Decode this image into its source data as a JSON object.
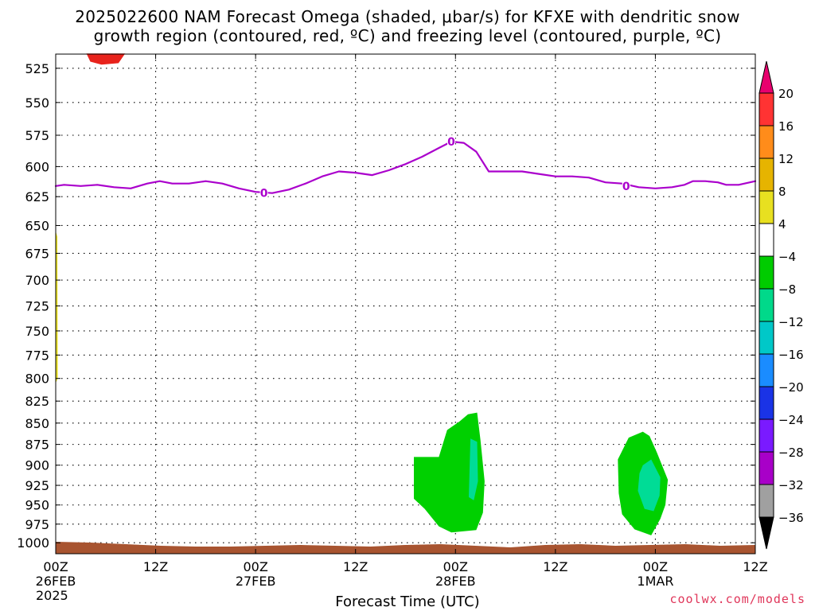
{
  "title": {
    "line1": "2025022600 NAM Forecast Omega (shaded, μbar/s) for KFXE with dendritic snow",
    "line2": "growth region (contoured, red, ºC) and freezing level (contoured, purple, ºC)"
  },
  "chart_data": {
    "type": "heatmap",
    "title": "2025022600 NAM Forecast Omega (shaded, μbar/s) for KFXE with dendritic snow growth region (contoured, red, ºC) and freezing level (contoured, purple, ºC)",
    "xlabel": "Forecast Time (UTC)",
    "ylabel": "",
    "x_ticks": [
      {
        "hour": 0,
        "line1": "00Z",
        "line2": "26FEB",
        "line3": "2025"
      },
      {
        "hour": 12,
        "line1": "12Z",
        "line2": "",
        "line3": ""
      },
      {
        "hour": 24,
        "line1": "00Z",
        "line2": "27FEB",
        "line3": ""
      },
      {
        "hour": 36,
        "line1": "12Z",
        "line2": "",
        "line3": ""
      },
      {
        "hour": 48,
        "line1": "00Z",
        "line2": "28FEB",
        "line3": ""
      },
      {
        "hour": 60,
        "line1": "12Z",
        "line2": "",
        "line3": ""
      },
      {
        "hour": 72,
        "line1": "00Z",
        "line2": "1MAR",
        "line3": ""
      },
      {
        "hour": 84,
        "line1": "12Z",
        "line2": "",
        "line3": ""
      }
    ],
    "xlim": [
      0,
      84
    ],
    "y_ticks": [
      525,
      550,
      575,
      600,
      625,
      650,
      675,
      700,
      725,
      750,
      775,
      800,
      825,
      850,
      875,
      900,
      925,
      950,
      975,
      1000
    ],
    "ylim": [
      515,
      1015
    ],
    "y_scale": "log-pressure",
    "grid": true,
    "colorbar": {
      "labels": [
        "20",
        "16",
        "12",
        "8",
        "4",
        "−4",
        "−8",
        "−12",
        "−16",
        "−20",
        "−24",
        "−28",
        "−32",
        "−36"
      ],
      "colors": [
        "#e8006e",
        "#ff3333",
        "#ff8c1a",
        "#e6b400",
        "#e8e020",
        "#ffffff",
        "#00cc00",
        "#00d98a",
        "#00c8c8",
        "#1a8cff",
        "#1a33e6",
        "#7a1aff",
        "#a800c8",
        "#a0a0a0",
        "#000000"
      ]
    },
    "freezing_level": {
      "label": "0",
      "color": "#aa00cc",
      "points": [
        [
          0,
          616
        ],
        [
          1,
          615
        ],
        [
          3,
          616
        ],
        [
          5,
          615
        ],
        [
          7,
          617
        ],
        [
          9,
          618
        ],
        [
          11,
          614
        ],
        [
          12.5,
          612
        ],
        [
          14,
          614
        ],
        [
          16,
          614
        ],
        [
          18,
          612
        ],
        [
          20,
          614
        ],
        [
          22,
          618
        ],
        [
          24,
          621
        ],
        [
          26,
          622
        ],
        [
          28,
          619
        ],
        [
          30,
          614
        ],
        [
          32,
          608
        ],
        [
          34,
          604
        ],
        [
          36,
          605
        ],
        [
          38,
          607
        ],
        [
          40,
          603
        ],
        [
          42,
          598
        ],
        [
          44,
          592
        ],
        [
          46,
          585
        ],
        [
          47.5,
          580
        ],
        [
          49,
          581
        ],
        [
          50.5,
          588
        ],
        [
          52,
          604
        ],
        [
          54,
          604
        ],
        [
          56,
          604
        ],
        [
          58,
          606
        ],
        [
          60,
          608
        ],
        [
          62,
          608
        ],
        [
          64,
          609
        ],
        [
          66,
          613
        ],
        [
          68,
          614
        ],
        [
          70,
          617
        ],
        [
          72,
          618
        ],
        [
          74,
          617
        ],
        [
          75.5,
          615
        ],
        [
          76.5,
          612
        ],
        [
          78,
          612
        ],
        [
          79.5,
          613
        ],
        [
          80.5,
          615
        ],
        [
          82,
          615
        ],
        [
          84,
          612
        ]
      ],
      "label_points": [
        [
          25,
          622
        ],
        [
          47.5,
          580
        ],
        [
          68.5,
          616
        ]
      ]
    },
    "dgz_contour": {
      "color": "#e8231c",
      "points": [
        [
          3.8,
          515
        ],
        [
          4.2,
          520
        ],
        [
          5.5,
          522
        ],
        [
          7.5,
          521
        ],
        [
          8.2,
          515
        ]
      ]
    },
    "omega_regions": [
      {
        "level": "−4 to −8",
        "color": "#00d000",
        "points": [
          [
            43,
            890
          ],
          [
            46,
            890
          ],
          [
            47,
            858
          ],
          [
            48.5,
            848
          ],
          [
            49.5,
            840
          ],
          [
            50.6,
            838
          ],
          [
            51,
            870
          ],
          [
            51.5,
            920
          ],
          [
            51.3,
            960
          ],
          [
            50.5,
            983
          ],
          [
            47.5,
            986
          ],
          [
            46,
            978
          ],
          [
            44.3,
            955
          ],
          [
            43,
            942
          ]
        ]
      },
      {
        "level": "−8 to −12",
        "color": "#00dc96",
        "points": [
          [
            49.8,
            868
          ],
          [
            50.6,
            872
          ],
          [
            50.7,
            920
          ],
          [
            50.2,
            944
          ],
          [
            49.6,
            940
          ],
          [
            49.7,
            900
          ]
        ]
      },
      {
        "level": "−4 to −8",
        "color": "#00d000",
        "points": [
          [
            67.5,
            893
          ],
          [
            68.8,
            867
          ],
          [
            70.5,
            860
          ],
          [
            71.3,
            865
          ],
          [
            72.2,
            885
          ],
          [
            73.5,
            918
          ],
          [
            73.2,
            950
          ],
          [
            72.6,
            968
          ],
          [
            71.5,
            990
          ],
          [
            69.5,
            982
          ],
          [
            68,
            962
          ],
          [
            67.6,
            935
          ]
        ]
      },
      {
        "level": "−8 to −12",
        "color": "#00dc96",
        "points": [
          [
            70.5,
            900
          ],
          [
            71.5,
            893
          ],
          [
            72.6,
            915
          ],
          [
            72.5,
            938
          ],
          [
            71.8,
            958
          ],
          [
            70.7,
            955
          ],
          [
            69.9,
            932
          ],
          [
            70.1,
            910
          ]
        ]
      },
      {
        "level": "4 to 8",
        "color": "#e8e020",
        "points": [
          [
            0,
            655
          ],
          [
            0.2,
            660
          ],
          [
            0.25,
            800
          ],
          [
            0,
            805
          ]
        ]
      }
    ],
    "terrain": {
      "color": "#a85430"
    }
  },
  "footer": {
    "xlabel": "Forecast Time (UTC)",
    "credit": "coolwx.com/models"
  }
}
